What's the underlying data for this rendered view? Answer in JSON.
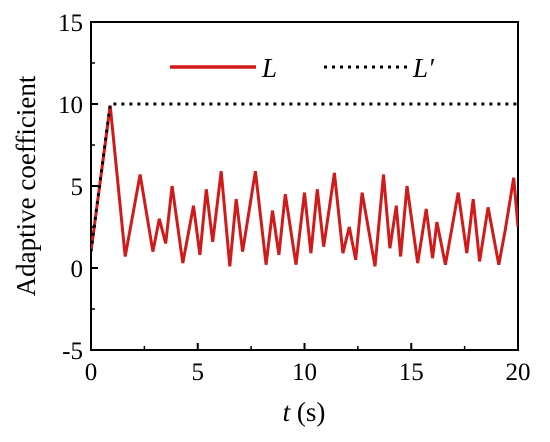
{
  "chart_data": {
    "type": "line",
    "xlabel_italic": "t",
    "xlabel_unit": " (s)",
    "ylabel": "Adaptive coefficient",
    "xlim": [
      0,
      20
    ],
    "ylim": [
      -5,
      15
    ],
    "x_ticks": [
      "0",
      "5",
      "10",
      "15",
      "20"
    ],
    "y_ticks": [
      "-5",
      "0",
      "5",
      "10",
      "15"
    ],
    "grid": false,
    "legend_position": "top",
    "series": [
      {
        "name": "L",
        "color": "#d11a1a",
        "style": "solid",
        "x": [
          0,
          0.9,
          1.6,
          2.3,
          2.9,
          3.2,
          3.5,
          3.8,
          4.3,
          4.8,
          5.1,
          5.4,
          5.7,
          6.1,
          6.5,
          6.8,
          7.1,
          7.7,
          8.2,
          8.5,
          8.8,
          9.1,
          9.6,
          10.0,
          10.3,
          10.6,
          10.9,
          11.4,
          11.8,
          12.1,
          12.4,
          12.7,
          13.3,
          13.7,
          14.0,
          14.3,
          14.5,
          14.8,
          15.3,
          15.7,
          16.0,
          16.2,
          16.6,
          17.2,
          17.6,
          17.9,
          18.2,
          18.6,
          19.1,
          19.4,
          19.8,
          20.0
        ],
        "y": [
          1.0,
          9.9,
          0.7,
          5.7,
          1.0,
          3.0,
          1.5,
          5.0,
          0.3,
          3.8,
          0.8,
          4.8,
          1.6,
          5.9,
          0.1,
          4.2,
          1.0,
          5.9,
          0.2,
          3.5,
          0.8,
          4.5,
          0.2,
          4.6,
          0.9,
          4.8,
          1.3,
          5.8,
          0.9,
          2.5,
          0.5,
          4.6,
          0.1,
          5.7,
          1.2,
          3.8,
          0.7,
          5.0,
          0.3,
          3.6,
          0.6,
          2.8,
          0.2,
          4.6,
          0.9,
          4.2,
          0.4,
          3.7,
          0.2,
          2.3,
          5.5,
          2.5
        ]
      },
      {
        "name": "L′",
        "color": "#000000",
        "style": "dotted",
        "x": [
          0,
          0.9,
          20
        ],
        "y": [
          1.0,
          10.0,
          10.0
        ]
      }
    ]
  }
}
